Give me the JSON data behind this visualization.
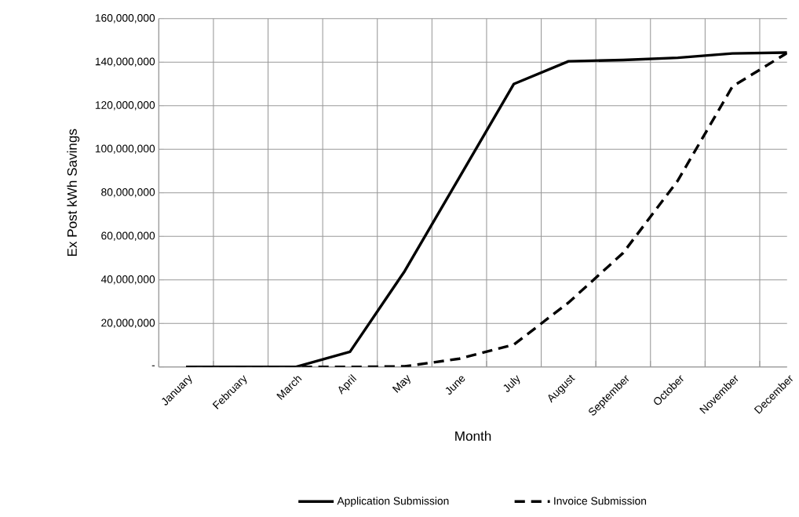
{
  "chart_data": {
    "type": "line",
    "xlabel": "Month",
    "ylabel": "Ex Post kWh Savings",
    "categories": [
      "January",
      "February",
      "March",
      "April",
      "May",
      "June",
      "July",
      "August",
      "September",
      "October",
      "November",
      "December"
    ],
    "series": [
      {
        "name": "Application Submission",
        "color": "#000000",
        "line_style": "solid",
        "values": [
          0,
          0,
          0,
          7000000,
          44000000,
          87000000,
          130000000,
          140400000,
          141000000,
          142000000,
          144000000,
          144400000
        ]
      },
      {
        "name": "Invoice Submission",
        "color": "#000000",
        "line_style": "dashed",
        "values": [
          0,
          0,
          0,
          0,
          300000,
          3800000,
          10300000,
          29600000,
          52400000,
          85600000,
          128800000,
          144200000
        ]
      }
    ],
    "ylim": [
      0,
      160000000
    ],
    "yticks": [
      {
        "value": 0,
        "label": "-"
      },
      {
        "value": 20000000,
        "label": "20,000,000"
      },
      {
        "value": 40000000,
        "label": "40,000,000"
      },
      {
        "value": 60000000,
        "label": "60,000,000"
      },
      {
        "value": 80000000,
        "label": "80,000,000"
      },
      {
        "value": 100000000,
        "label": "100,000,000"
      },
      {
        "value": 120000000,
        "label": "120,000,000"
      },
      {
        "value": 140000000,
        "label": "140,000,000"
      },
      {
        "value": 160000000,
        "label": "160,000,000"
      }
    ],
    "grid": true,
    "legend": "bottom",
    "marker": "none"
  }
}
